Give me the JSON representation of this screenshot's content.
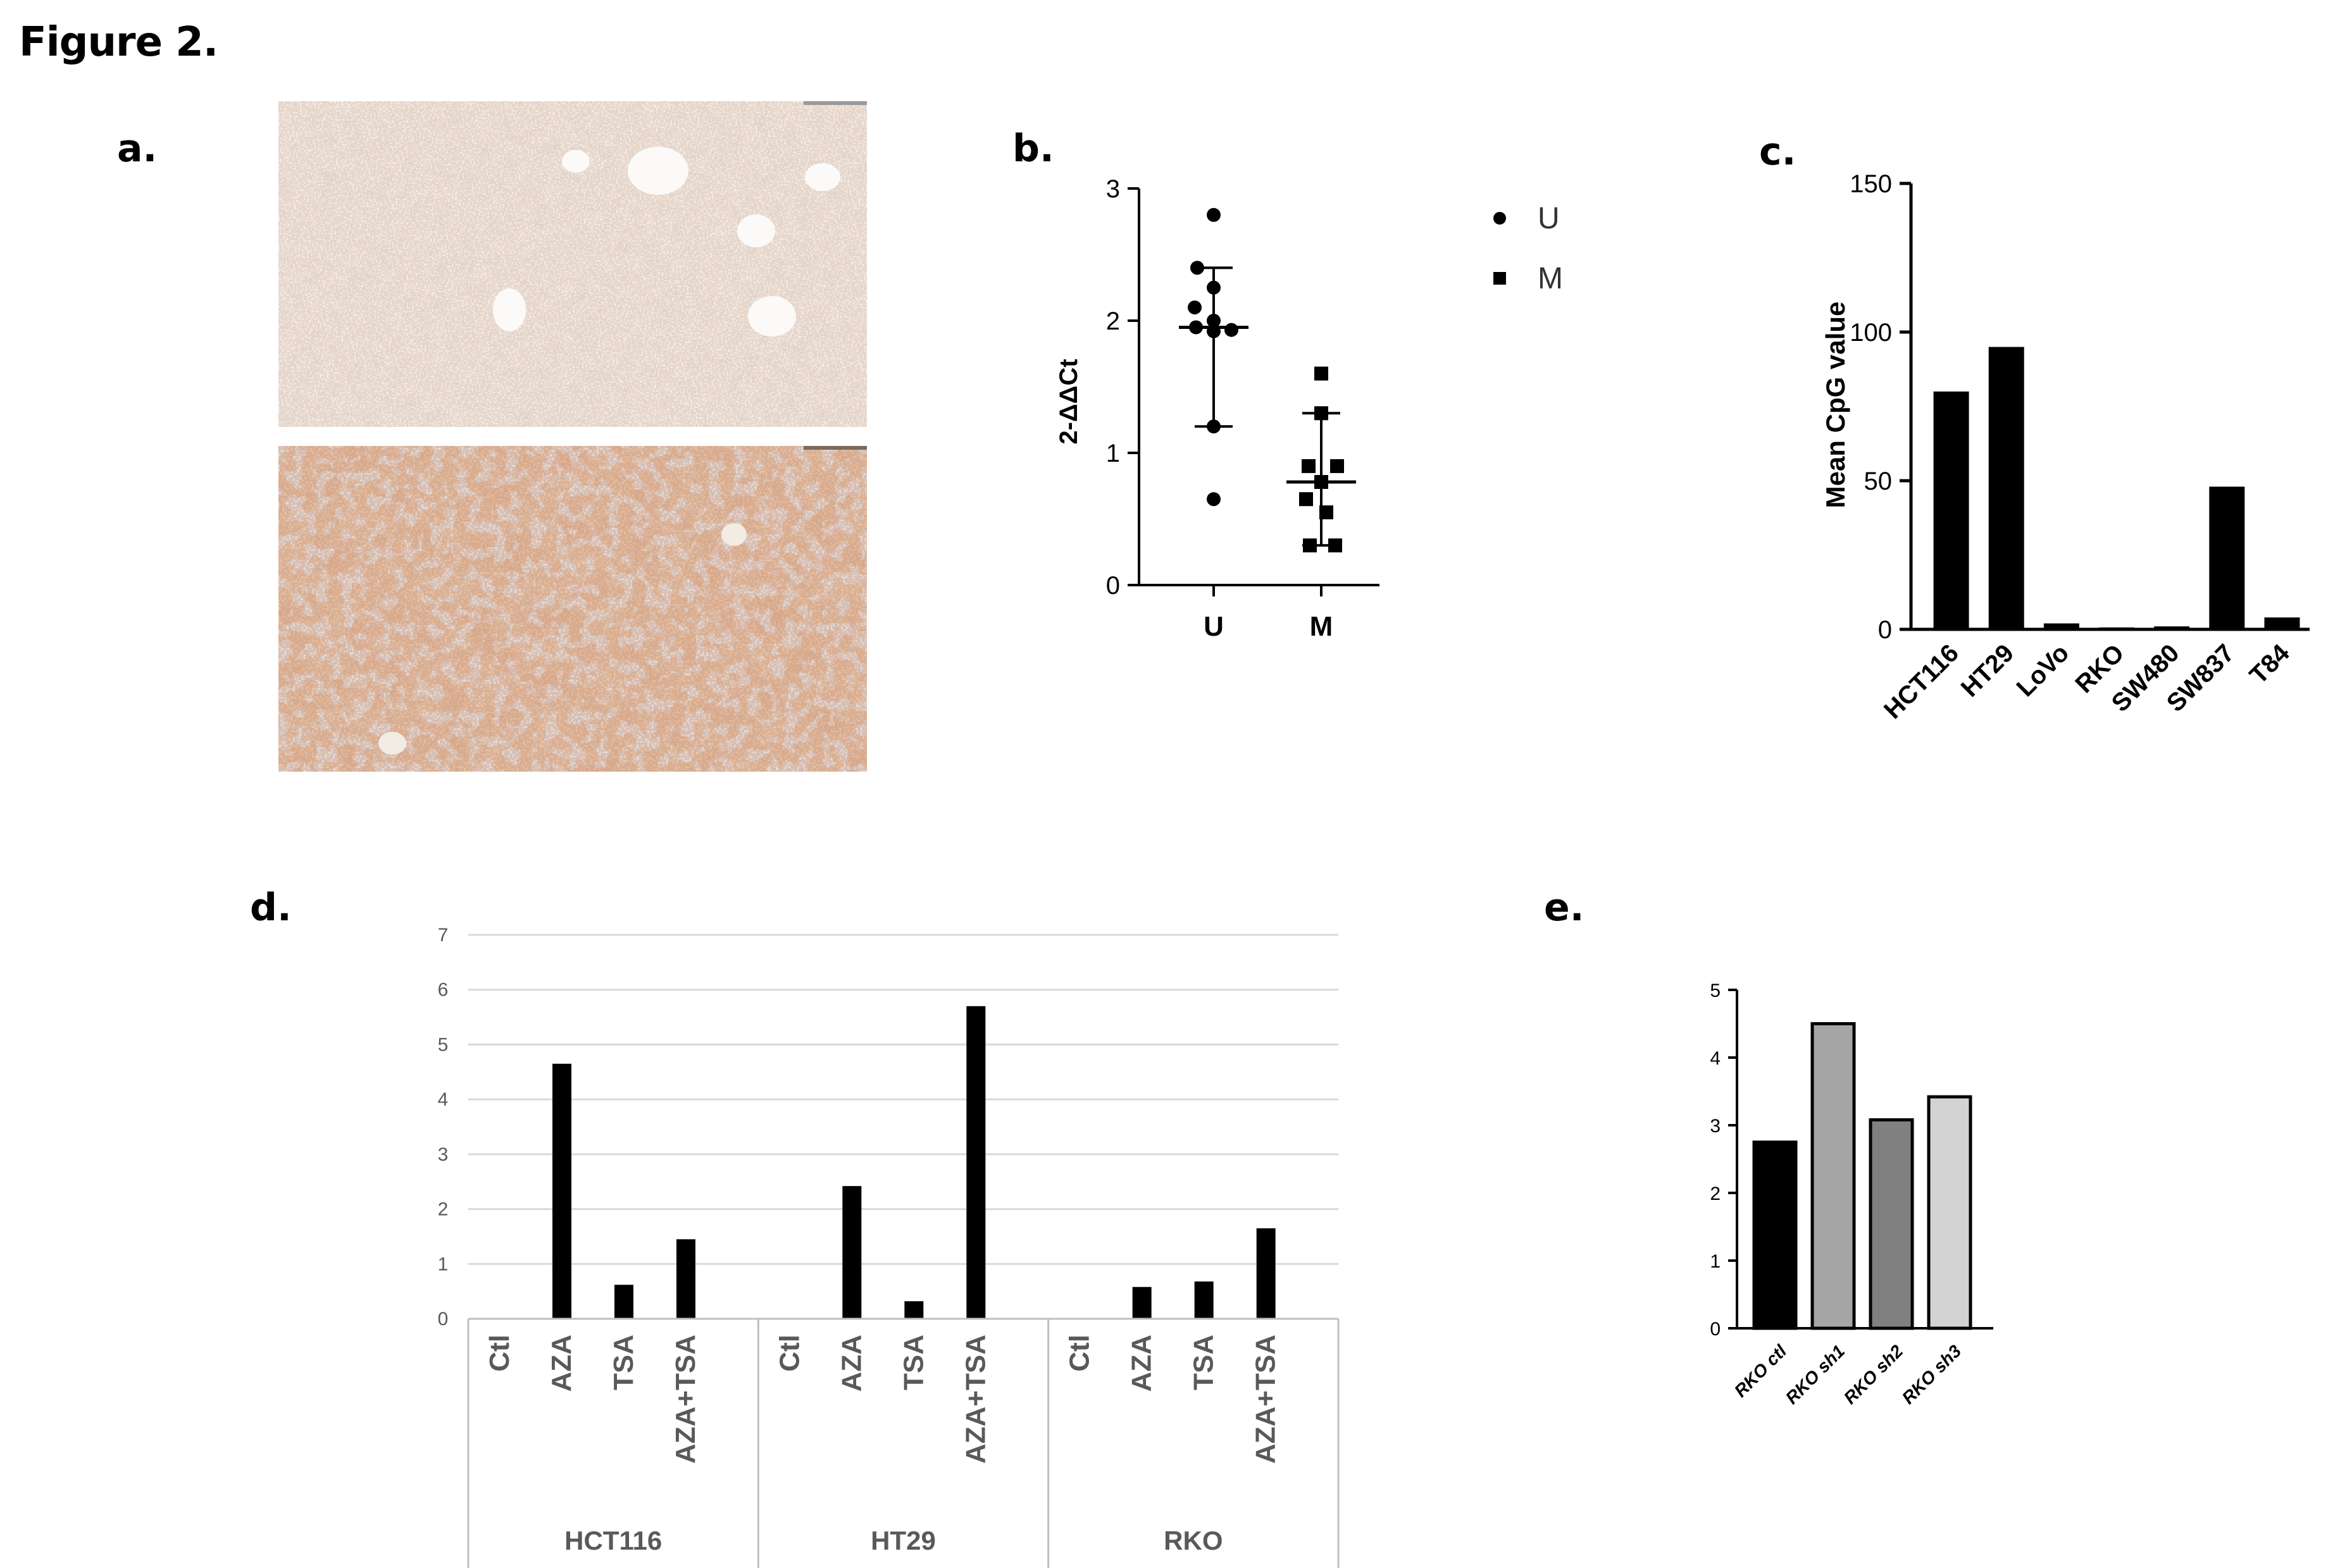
{
  "figure_title": "Figure 2.",
  "panels": {
    "a": {
      "label": "a."
    },
    "b": {
      "label": "b."
    },
    "c": {
      "label": "c."
    },
    "d": {
      "label": "d."
    },
    "e": {
      "label": "e."
    }
  },
  "colors": {
    "bar_black": "#000000",
    "grid_gray": "#d9d9d9",
    "axis_gray": "#bfbfbf",
    "text_gray": "#595959",
    "stain_light": "#efece6",
    "stain_brown": "#d9a37c",
    "bar_e_gray1": "#a6a6a6",
    "bar_e_gray2": "#808080",
    "bar_e_gray3": "#d3d3d3"
  },
  "chart_data": [
    {
      "panel": "b",
      "type": "scatter",
      "ylabel": "2-ΔΔCt",
      "ylim": [
        0,
        3
      ],
      "yticks": [
        "0",
        "1",
        "2",
        "3"
      ],
      "categories": [
        "U",
        "M"
      ],
      "legend": [
        "U",
        "M"
      ],
      "legend_placement": "right",
      "series": [
        {
          "name": "U",
          "marker": "circle",
          "values": [
            2.8,
            2.4,
            2.25,
            2.1,
            2.0,
            1.95,
            1.93,
            1.92,
            1.2,
            0.65
          ],
          "median": 1.95,
          "range": [
            1.2,
            2.4
          ]
        },
        {
          "name": "M",
          "marker": "square",
          "values": [
            1.6,
            1.3,
            0.9,
            0.9,
            0.78,
            0.65,
            0.55,
            0.3,
            0.3
          ],
          "median": 0.78,
          "range": [
            0.3,
            1.3
          ]
        }
      ]
    },
    {
      "panel": "c",
      "type": "bar",
      "ylabel": "Mean CpG value",
      "ylim": [
        0,
        150
      ],
      "yticks": [
        "0",
        "50",
        "100",
        "150"
      ],
      "categories": [
        "HCT116",
        "HT29",
        "LoVo",
        "RKO",
        "SW480",
        "SW837",
        "T84"
      ],
      "values": [
        80,
        95,
        2,
        0.5,
        1,
        48,
        4
      ]
    },
    {
      "panel": "d",
      "type": "bar",
      "ylim": [
        0,
        7
      ],
      "yticks": [
        "0",
        "1",
        "2",
        "3",
        "4",
        "5",
        "6",
        "7"
      ],
      "grid": true,
      "groups": [
        {
          "name": "HCT116",
          "categories": [
            "Ctl",
            "AZA",
            "TSA",
            "AZA+TSA"
          ],
          "values": [
            0,
            4.65,
            0.62,
            1.45
          ]
        },
        {
          "name": "HT29",
          "categories": [
            "Ctl",
            "AZA",
            "TSA",
            "AZA+TSA"
          ],
          "values": [
            0,
            2.42,
            0.32,
            5.7
          ]
        },
        {
          "name": "RKO",
          "categories": [
            "Ctl",
            "AZA",
            "TSA",
            "AZA+TSA"
          ],
          "values": [
            0,
            0.58,
            0.68,
            1.65
          ]
        }
      ]
    },
    {
      "panel": "e",
      "type": "bar",
      "ylim": [
        0,
        5
      ],
      "yticks": [
        "0",
        "1",
        "2",
        "3",
        "4",
        "5"
      ],
      "categories": [
        "RKO ctl",
        "RKO sh1",
        "RKO sh2",
        "RKO sh3"
      ],
      "values": [
        2.75,
        4.5,
        3.08,
        3.42
      ]
    }
  ]
}
